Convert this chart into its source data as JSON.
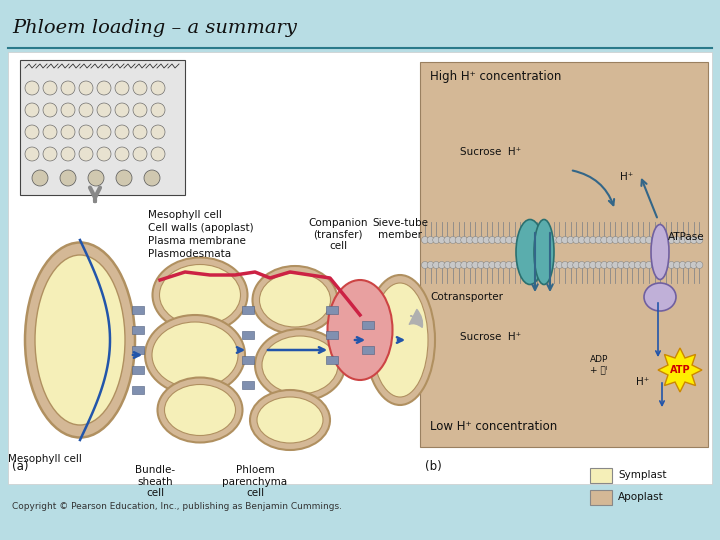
{
  "title": "Phloem loading – a summary",
  "title_fontsize": 14,
  "title_fontstyle": "italic",
  "title_fontfamily": "serif",
  "bg_color": "#b8dde4",
  "white_bg": "#ffffff",
  "tan_bg": "#d4b896",
  "copyright_text": "Copyright © Pearson Education, Inc., publishing as Benjamin Cummings.",
  "copyright_fontsize": 6.5,
  "symplast_color": "#f5efb8",
  "apoplast_color": "#d4b896",
  "cell_edge_color": "#b09060",
  "blue_arrow": "#2255aa",
  "pink_line": "#cc2244",
  "gray_arrow": "#999999",
  "teal_line": "#2a7a8a",
  "legend_items": [
    {
      "label": "Symplast",
      "color": "#f5efb8"
    },
    {
      "label": "Apoplast",
      "color": "#d4b896"
    }
  ]
}
